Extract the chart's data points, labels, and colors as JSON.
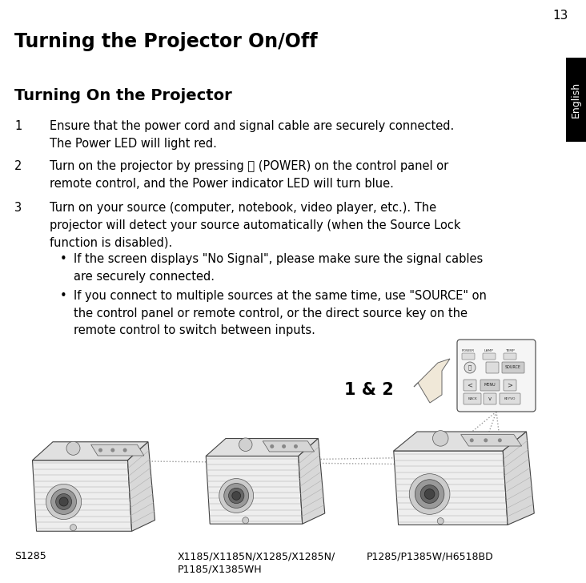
{
  "page_number": "13",
  "title": "Turning the Projector On/Off",
  "subtitle": "Turning On the Projector",
  "sidebar_text": "English",
  "sidebar_bg": "#000000",
  "sidebar_text_color": "#ffffff",
  "bg_color": "#ffffff",
  "text_color": "#000000",
  "item1": "Ensure that the power cord and signal cable are securely connected.\nThe Power LED will light red.",
  "item2": "Turn on the projector by pressing ⏻ (POWER) on the control panel or\nremote control, and the Power indicator LED will turn blue.",
  "item3": "Turn on your source (computer, notebook, video player, etc.). The\nprojector will detect your source automatically (when the Source Lock\nfunction is disabled).",
  "bullet1": "If the screen displays \"No Signal\", please make sure the signal cables\nare securely connected.",
  "bullet2": "If you connect to multiple sources at the same time, use \"SOURCE\" on\nthe control panel or remote control, or the direct source key on the\nremote control to switch between inputs.",
  "label_12": "1 & 2",
  "caption_left": "S1285",
  "caption_mid": "X1185/X1185N/X1285/X1285N/\nP1185/X1385WH",
  "caption_right": "P1285/P1385W/H6518BD",
  "font_size_title": 17,
  "font_size_subtitle": 14,
  "font_size_body": 10.5,
  "font_size_caption": 9,
  "font_size_pagenum": 11,
  "font_size_label12": 15
}
